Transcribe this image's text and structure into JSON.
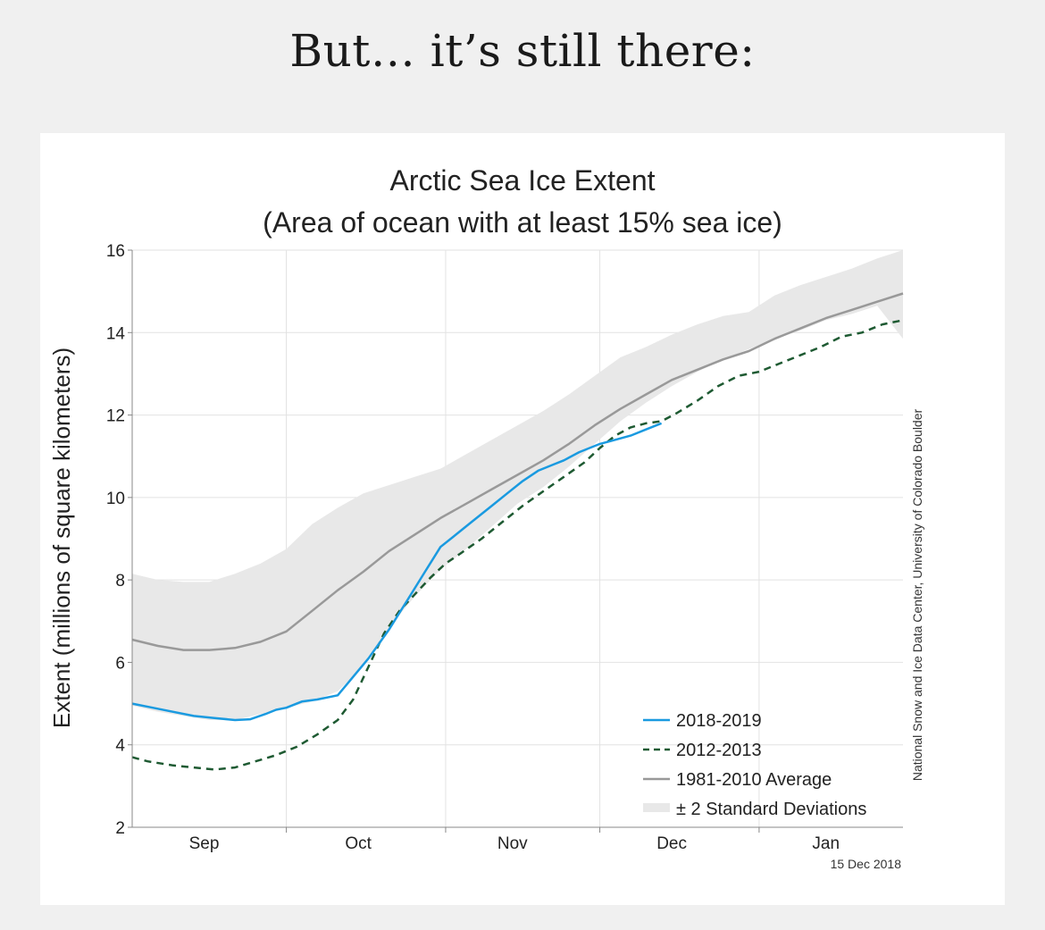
{
  "heading": "But… it’s still there:",
  "chart_data": {
    "type": "line",
    "title": "Arctic Sea Ice Extent",
    "subtitle": "(Area of ocean with at least 15% sea ice)",
    "ylabel": "Extent (millions of square kilometers)",
    "xlabel": "",
    "ylim": [
      2,
      16
    ],
    "yticks": [
      2,
      4,
      6,
      8,
      10,
      12,
      14,
      16
    ],
    "xlim": [
      0,
      150
    ],
    "month_boundaries": [
      30,
      61,
      91,
      122
    ],
    "months": [
      {
        "label": "Sep",
        "x": 14
      },
      {
        "label": "Oct",
        "x": 44
      },
      {
        "label": "Nov",
        "x": 74
      },
      {
        "label": "Dec",
        "x": 105
      },
      {
        "label": "Jan",
        "x": 135
      }
    ],
    "credit": "National Snow and Ice Data Center, University of Colorado Boulder",
    "date_stamp": "15 Dec 2018",
    "colors": {
      "series_2018": "#1a9ae0",
      "series_2012": "#1e5a32",
      "average": "#999999",
      "band": "#e8e8e8",
      "grid": "#e2e2e2",
      "axis": "#888888"
    },
    "band": {
      "name": "± 2 Standard Deviations",
      "x": [
        0,
        5,
        10,
        15,
        20,
        25,
        30,
        35,
        40,
        45,
        50,
        55,
        60,
        65,
        70,
        75,
        80,
        85,
        90,
        95,
        100,
        105,
        110,
        115,
        120,
        125,
        130,
        135,
        140,
        145,
        150
      ],
      "upper": [
        8.15,
        8.0,
        7.95,
        7.95,
        8.15,
        8.4,
        8.75,
        9.35,
        9.75,
        10.1,
        10.3,
        10.5,
        10.7,
        11.05,
        11.4,
        11.75,
        12.1,
        12.5,
        12.95,
        13.4,
        13.65,
        13.95,
        14.2,
        14.4,
        14.5,
        14.9,
        15.15,
        15.35,
        15.55,
        15.8,
        16.0
      ],
      "lower": [
        4.95,
        4.8,
        4.7,
        4.6,
        4.6,
        4.75,
        4.9,
        5.05,
        5.3,
        5.9,
        6.85,
        7.6,
        8.25,
        8.75,
        9.3,
        9.85,
        10.25,
        10.75,
        11.3,
        11.85,
        12.3,
        12.7,
        13.05,
        13.35,
        13.6,
        13.85,
        14.05,
        14.3,
        14.45,
        14.65,
        13.85
      ]
    },
    "series": [
      {
        "name": "2018-2019",
        "style": "solid",
        "x": [
          0,
          4,
          8,
          12,
          16,
          20,
          23,
          26,
          28,
          30,
          33,
          36,
          40,
          43,
          46,
          50,
          54,
          57,
          60,
          63,
          66,
          70,
          73,
          76,
          79,
          82,
          84,
          87,
          91,
          94,
          97,
          100,
          103
        ],
        "values": [
          5.0,
          4.9,
          4.8,
          4.7,
          4.65,
          4.6,
          4.62,
          4.75,
          4.85,
          4.9,
          5.05,
          5.1,
          5.2,
          5.65,
          6.1,
          6.8,
          7.6,
          8.2,
          8.8,
          9.1,
          9.4,
          9.8,
          10.1,
          10.4,
          10.65,
          10.8,
          10.9,
          11.1,
          11.3,
          11.4,
          11.5,
          11.65,
          11.8
        ]
      },
      {
        "name": "2012-2013",
        "style": "dashed",
        "x": [
          0,
          3,
          8,
          12,
          16,
          20,
          24,
          28,
          32,
          36,
          40,
          43,
          46,
          49,
          52,
          55,
          58,
          61,
          64,
          68,
          72,
          76,
          80,
          84,
          88,
          91,
          94,
          97,
          100,
          103,
          106,
          110,
          114,
          118,
          122,
          126,
          130,
          134,
          138,
          142,
          146,
          150
        ],
        "values": [
          3.7,
          3.6,
          3.5,
          3.45,
          3.4,
          3.45,
          3.6,
          3.75,
          3.95,
          4.25,
          4.6,
          5.1,
          5.9,
          6.7,
          7.25,
          7.65,
          8.05,
          8.4,
          8.65,
          9.0,
          9.4,
          9.8,
          10.15,
          10.5,
          10.85,
          11.2,
          11.5,
          11.7,
          11.8,
          11.85,
          12.05,
          12.35,
          12.7,
          12.95,
          13.05,
          13.25,
          13.45,
          13.65,
          13.9,
          14.0,
          14.2,
          14.3
        ]
      },
      {
        "name": "1981-2010 Average",
        "style": "solid",
        "x": [
          0,
          5,
          10,
          15,
          20,
          25,
          30,
          35,
          40,
          45,
          50,
          55,
          60,
          65,
          70,
          75,
          80,
          85,
          90,
          95,
          100,
          105,
          110,
          115,
          120,
          125,
          130,
          135,
          140,
          145,
          150
        ],
        "values": [
          6.55,
          6.4,
          6.3,
          6.3,
          6.35,
          6.5,
          6.75,
          7.25,
          7.75,
          8.2,
          8.7,
          9.1,
          9.5,
          9.85,
          10.2,
          10.55,
          10.9,
          11.3,
          11.75,
          12.15,
          12.5,
          12.85,
          13.1,
          13.35,
          13.55,
          13.85,
          14.1,
          14.35,
          14.55,
          14.75,
          14.95
        ]
      }
    ],
    "legend": [
      {
        "label": "2018-2019",
        "kind": "solid-blue"
      },
      {
        "label": "2012-2013",
        "kind": "dashed-green"
      },
      {
        "label": "1981-2010 Average",
        "kind": "solid-gray"
      },
      {
        "label": "± 2 Standard Deviations",
        "kind": "band"
      }
    ],
    "legend_position": "bottom-right"
  }
}
